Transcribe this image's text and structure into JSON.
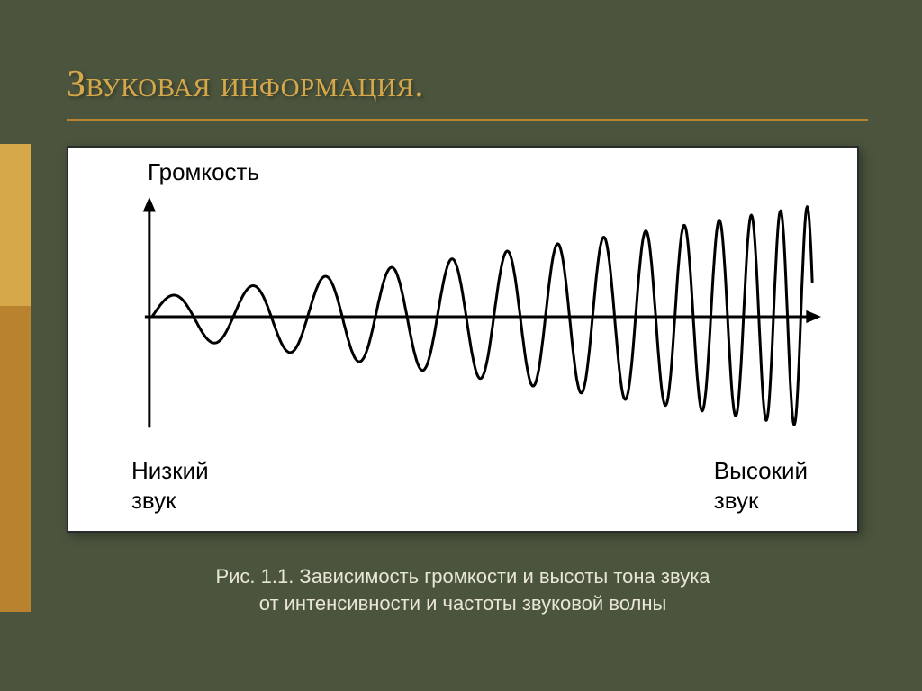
{
  "slide": {
    "title": "Звуковая информация.",
    "caption_line1": "Рис. 1.1. Зависимость громкости и высоты тона звука",
    "caption_line2": "от интенсивности и частоты звуковой волны",
    "background_color": "#4b553e",
    "title_color": "#d7a84a",
    "underline_color": "#b8822e",
    "caption_color": "#e9e6d8",
    "title_fontsize": 42,
    "caption_fontsize": 22
  },
  "accent": {
    "top_color": "#d7a84a",
    "bottom_color": "#b8822e"
  },
  "chart": {
    "type": "line",
    "y_axis_label": "Громкость",
    "x_label_low": "Низкий\nзвук",
    "x_label_high": "Высокий\nзвук",
    "label_fontsize": 26,
    "label_color": "#000000",
    "background_color": "#ffffff",
    "frame_border_color": "#2b2b2b",
    "axis_color": "#000000",
    "axis_width": 3,
    "wave_color": "#000000",
    "wave_width": 3,
    "arrow_size": 12,
    "xlim": [
      0,
      780
    ],
    "ylim": [
      -130,
      130
    ],
    "axis_origin_x": 30,
    "axis_y_top": 5,
    "axis_x_right": 780,
    "wave": {
      "cycles": 16,
      "start_amplitude": 22,
      "end_amplitude": 125,
      "start_wavelength": 95,
      "end_wavelength": 28,
      "x_start": 33,
      "x_end": 770
    }
  }
}
